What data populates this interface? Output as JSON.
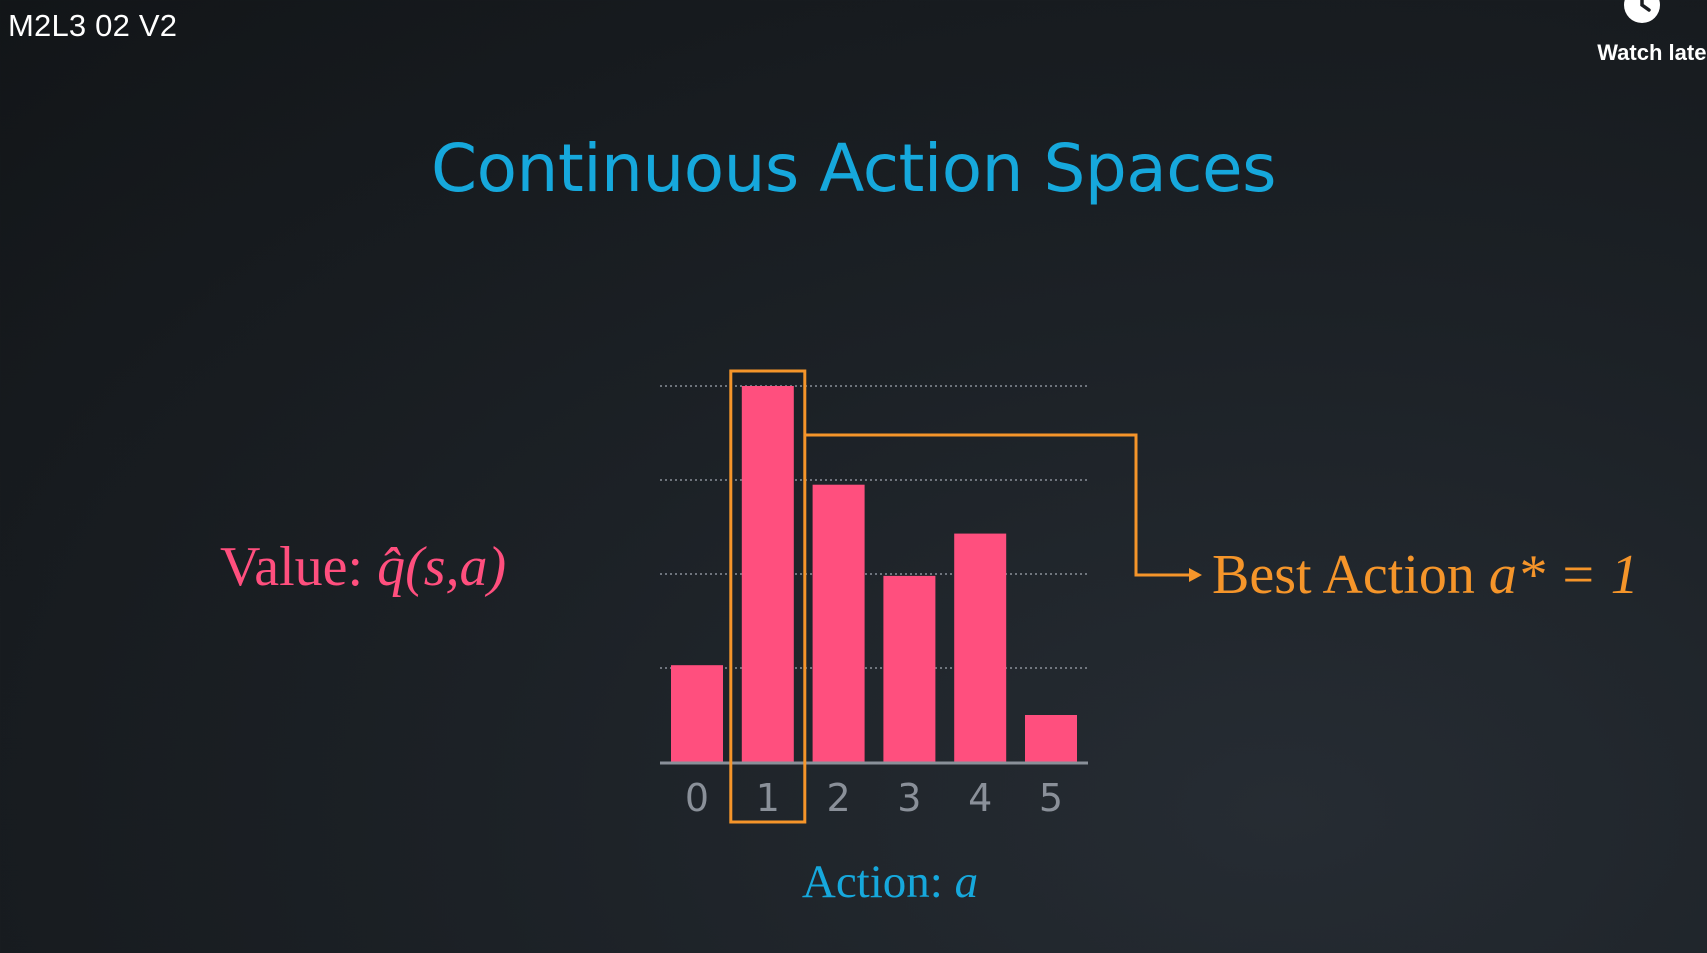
{
  "player": {
    "video_title": "M2L3 02 V2",
    "watch_later_label": "Watch later",
    "watch_later_icon": "clock-icon"
  },
  "slide": {
    "title": "Continuous Action Spaces",
    "value_label_prefix": "Value: ",
    "value_label_math": "q̂(s,a)",
    "best_action_prefix": "Best Action ",
    "best_action_math": "a* = 1",
    "xaxis_prefix": "Action: ",
    "xaxis_math": "a"
  },
  "colors": {
    "title": "#16a8dc",
    "bar": "#ff4f7e",
    "highlight": "#f5952a",
    "gridline": "#8a9099",
    "axis": "#8a9099"
  },
  "chart_data": {
    "type": "bar",
    "categories": [
      "0",
      "1",
      "2",
      "3",
      "4",
      "5"
    ],
    "values": [
      1.03,
      4.0,
      2.95,
      1.98,
      2.43,
      0.5
    ],
    "ylim": [
      0,
      4
    ],
    "grid": true,
    "highlighted_category": "1"
  }
}
